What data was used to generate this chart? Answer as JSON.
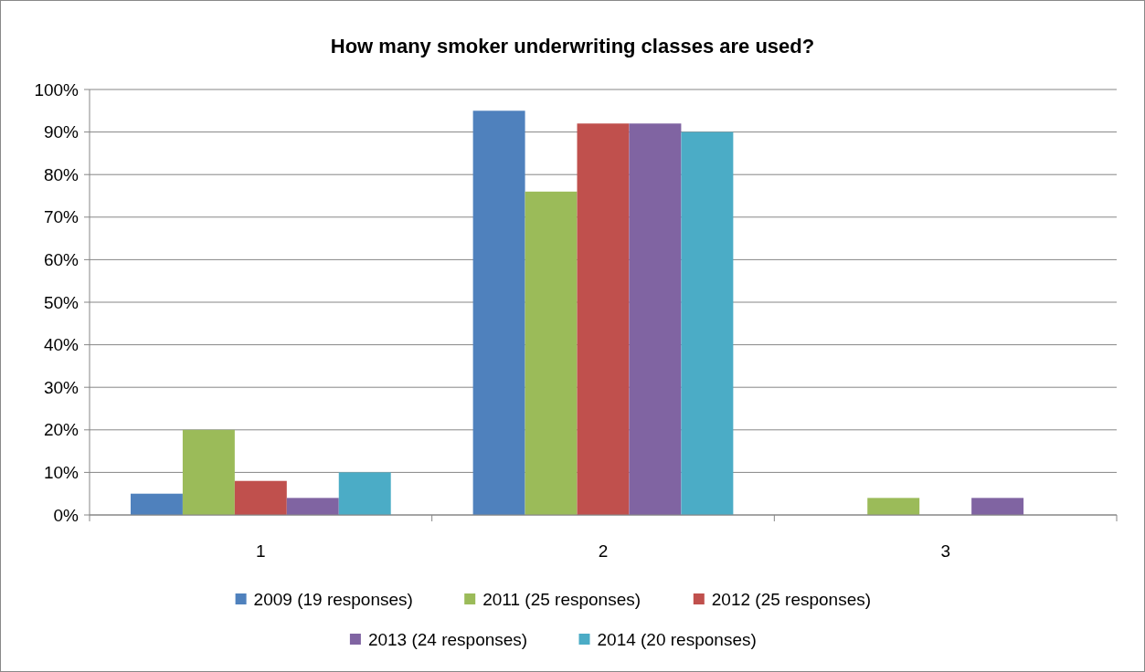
{
  "chart_data": {
    "type": "bar",
    "title": "How many smoker underwriting classes are used?",
    "categories": [
      "1",
      "2",
      "3"
    ],
    "series": [
      {
        "name": "2009 (19 responses)",
        "color": "#4f81bd",
        "values": [
          5,
          95,
          0
        ]
      },
      {
        "name": "2011 (25 responses)",
        "color": "#9bbb59",
        "values": [
          20,
          76,
          4
        ]
      },
      {
        "name": "2012 (25 responses)",
        "color": "#c0504d",
        "values": [
          8,
          92,
          0
        ]
      },
      {
        "name": "2013 (24 responses)",
        "color": "#8064a2",
        "values": [
          4,
          92,
          4
        ]
      },
      {
        "name": "2014 (20 responses)",
        "color": "#4bacc6",
        "values": [
          10,
          90,
          0
        ]
      }
    ],
    "ylim": [
      0,
      100
    ],
    "yticks": [
      {
        "value": 0,
        "label": "0%"
      },
      {
        "value": 10,
        "label": "10%"
      },
      {
        "value": 20,
        "label": "20%"
      },
      {
        "value": 30,
        "label": "30%"
      },
      {
        "value": 40,
        "label": "40%"
      },
      {
        "value": 50,
        "label": "50%"
      },
      {
        "value": 60,
        "label": "60%"
      },
      {
        "value": 70,
        "label": "70%"
      },
      {
        "value": 80,
        "label": "80%"
      },
      {
        "value": 90,
        "label": "90%"
      },
      {
        "value": 100,
        "label": "100%"
      }
    ],
    "grid": "y",
    "legend": "bottom"
  }
}
